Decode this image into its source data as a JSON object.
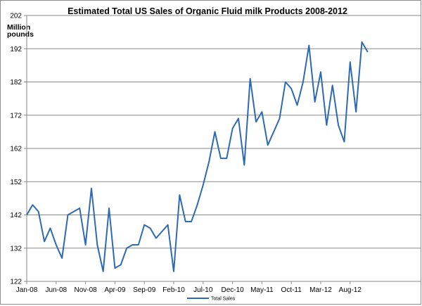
{
  "chart_data": {
    "type": "line",
    "title": "Estimated Total US Sales of Organic Fluid milk Products 2008-2012",
    "ylabel_line1": "Million",
    "ylabel_line2": "pounds",
    "xlabel": "",
    "ylim": [
      122,
      202
    ],
    "yticks": [
      "122",
      "132",
      "142",
      "152",
      "162",
      "172",
      "182",
      "192",
      "202"
    ],
    "xticks": [
      "Jan-08",
      "Jun-08",
      "Nov-08",
      "Apr-09",
      "Sep-09",
      "Feb-10",
      "Jul-10",
      "Dec-10",
      "May-11",
      "Oct-11",
      "Mar-12",
      "Aug-12"
    ],
    "grid": "horizontal",
    "legend_position": "bottom",
    "line_color": "#2e6ab3",
    "series": [
      {
        "name": "Total Sales",
        "values": [
          142,
          145,
          143,
          134,
          138,
          133,
          129,
          142,
          143,
          144,
          133,
          150,
          133,
          125,
          144,
          126,
          127,
          132,
          133,
          133,
          139,
          138,
          135,
          137,
          139,
          125,
          148,
          140,
          140,
          145,
          151,
          158,
          167,
          159,
          159,
          168,
          171,
          157,
          183,
          170,
          173,
          163,
          167,
          171,
          182,
          180,
          175,
          182,
          193,
          176,
          185,
          169,
          181,
          169,
          164,
          188,
          173,
          194,
          191
        ]
      }
    ]
  }
}
